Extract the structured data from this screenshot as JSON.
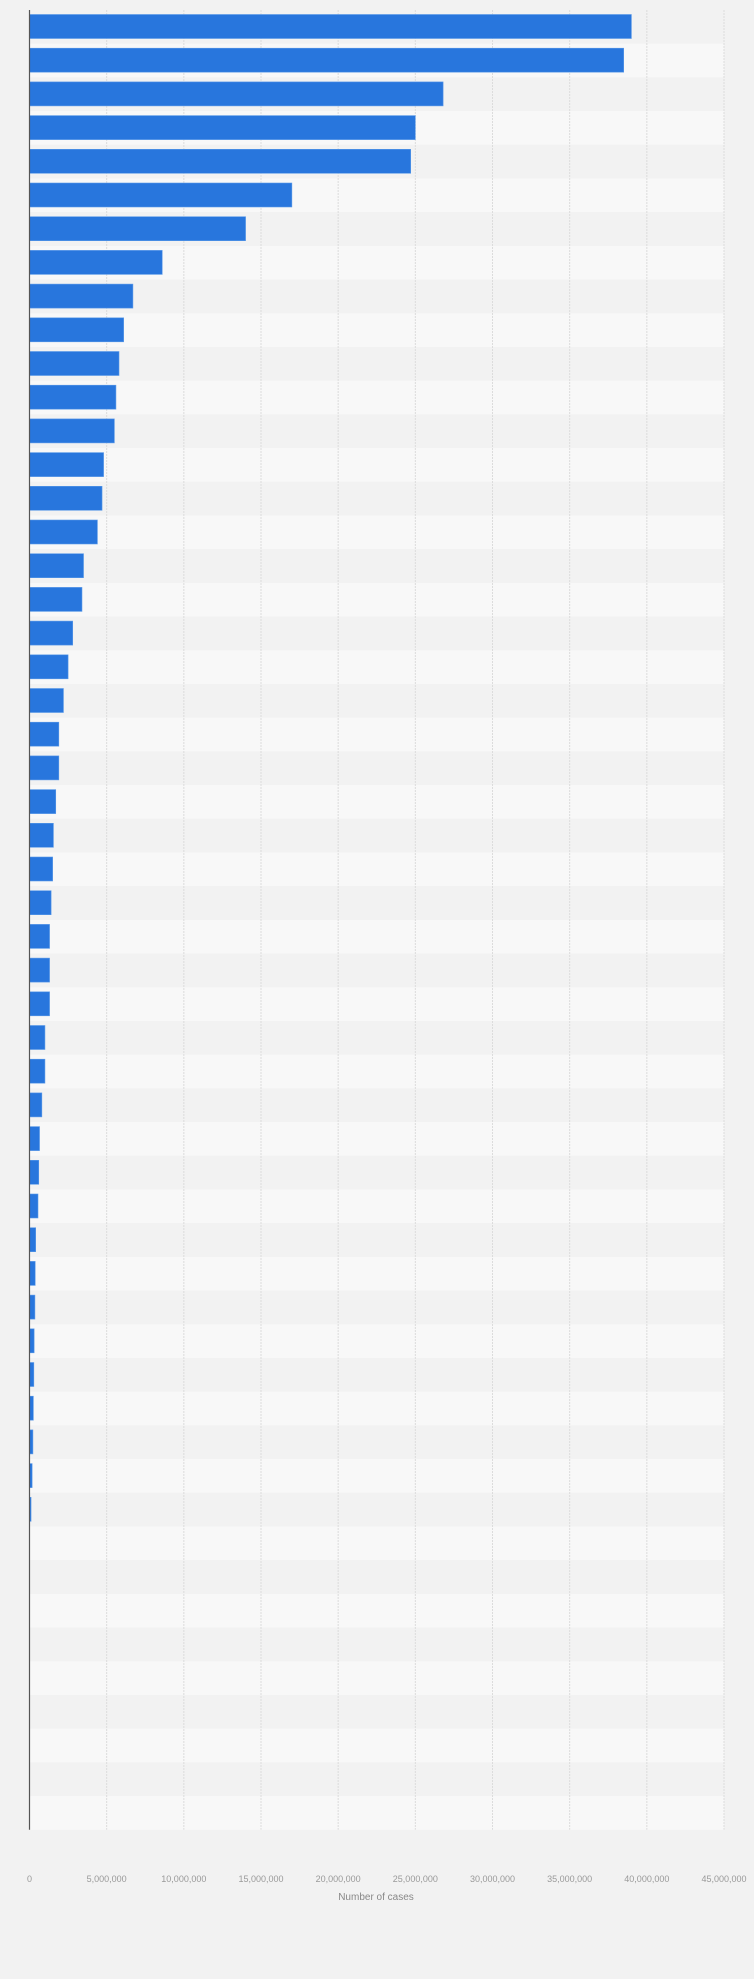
{
  "chart_data": {
    "type": "bar",
    "orientation": "horizontal",
    "title": "",
    "xlabel": "Number of cases",
    "ylabel": "",
    "xlim": [
      0,
      45000000
    ],
    "x_ticks": [
      0,
      5000000,
      10000000,
      15000000,
      20000000,
      25000000,
      30000000,
      35000000,
      40000000,
      45000000
    ],
    "x_tick_labels": [
      "0",
      "5,000,000",
      "10,000,000",
      "15,000,000",
      "20,000,000",
      "25,000,000",
      "30,000,000",
      "35,000,000",
      "40,000,000",
      "45,000,000"
    ],
    "grid": true,
    "bar_color": "#2876dd",
    "band_colors": [
      "#f2f2f2",
      "#f8f8f8"
    ],
    "background": "#f2f2f2",
    "values": [
      39000000,
      38500000,
      26800000,
      25000000,
      24700000,
      17000000,
      14000000,
      8600000,
      6700000,
      6100000,
      5800000,
      5600000,
      5500000,
      4800000,
      4700000,
      4400000,
      3500000,
      3400000,
      2800000,
      2500000,
      2200000,
      1900000,
      1900000,
      1700000,
      1550000,
      1500000,
      1400000,
      1300000,
      1300000,
      1300000,
      1000000,
      1000000,
      800000,
      650000,
      600000,
      550000,
      400000,
      370000,
      350000,
      300000,
      280000,
      250000,
      220000,
      170000,
      100000,
      0,
      0,
      0,
      0,
      0,
      0,
      0,
      0,
      0
    ]
  }
}
